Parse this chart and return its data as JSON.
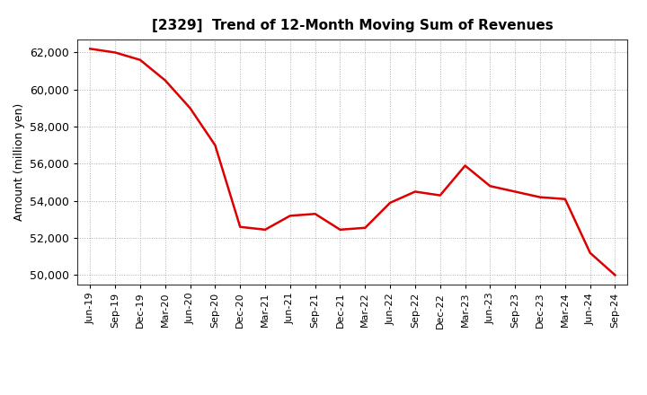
{
  "title": "[2329]  Trend of 12-Month Moving Sum of Revenues",
  "ylabel": "Amount (million yen)",
  "line_color": "#dd0000",
  "line_width": 1.8,
  "background_color": "#ffffff",
  "plot_bg_color": "#ffffff",
  "grid_color": "#999999",
  "ylim": [
    49500,
    62700
  ],
  "yticks": [
    50000,
    52000,
    54000,
    56000,
    58000,
    60000,
    62000
  ],
  "x_labels": [
    "Jun-19",
    "Sep-19",
    "Dec-19",
    "Mar-20",
    "Jun-20",
    "Sep-20",
    "Dec-20",
    "Mar-21",
    "Jun-21",
    "Sep-21",
    "Dec-21",
    "Mar-22",
    "Jun-22",
    "Sep-22",
    "Dec-22",
    "Mar-23",
    "Jun-23",
    "Sep-23",
    "Dec-23",
    "Mar-24",
    "Jun-24",
    "Sep-24"
  ],
  "values": [
    62200,
    62000,
    61600,
    60500,
    59000,
    57000,
    52600,
    52450,
    53200,
    53300,
    52450,
    52550,
    53900,
    54500,
    54300,
    55900,
    54800,
    54500,
    54200,
    54100,
    51200,
    50000
  ]
}
